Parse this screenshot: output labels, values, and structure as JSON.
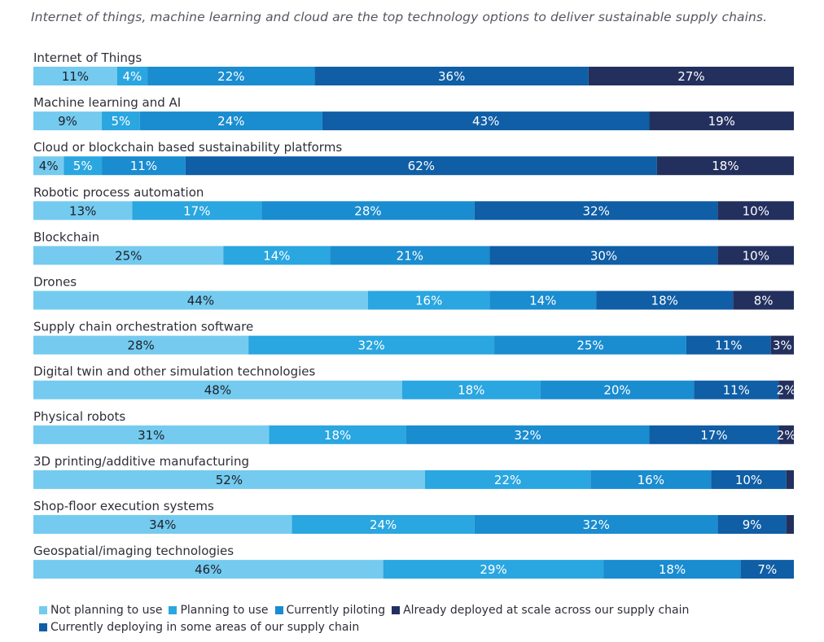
{
  "chart_data": {
    "type": "bar",
    "orientation": "horizontal",
    "stacked": true,
    "title": "Internet of things, machine learning and cloud are the top technology options to deliver sustainable supply chains.",
    "categories": [
      "Internet of Things",
      "Machine learning and AI",
      "Cloud or blockchain based sustainability platforms",
      "Robotic process automation",
      "Blockchain",
      "Drones",
      "Supply chain orchestration software",
      "Digital twin and other simulation technologies",
      "Physical robots",
      "3D printing/additive manufacturing",
      "Shop-floor execution systems",
      "Geospatial/imaging technologies"
    ],
    "series": [
      {
        "name": "Not planning to use",
        "color": "#74cbef",
        "values": [
          11,
          9,
          4,
          13,
          25,
          44,
          28,
          48,
          31,
          52,
          34,
          46
        ]
      },
      {
        "name": "Planning to use",
        "color": "#2aa6e0",
        "values": [
          4,
          5,
          5,
          17,
          14,
          16,
          32,
          18,
          18,
          22,
          24,
          29
        ]
      },
      {
        "name": "Currently piloting",
        "color": "#1a8cd0",
        "values": [
          22,
          24,
          11,
          28,
          21,
          14,
          25,
          20,
          32,
          16,
          32,
          18
        ]
      },
      {
        "name": "Currently deploying in some areas of our supply chain",
        "color": "#0f5ea6",
        "values": [
          36,
          43,
          62,
          32,
          30,
          18,
          11,
          11,
          17,
          10,
          9,
          7
        ]
      },
      {
        "name": "Already deployed at scale across our supply chain",
        "color": "#23305e",
        "values": [
          27,
          19,
          18,
          10,
          10,
          8,
          3,
          2,
          2,
          1,
          1,
          0
        ]
      }
    ],
    "data_labels": [
      [
        "11%",
        "4%",
        "22%",
        "36%",
        "27%"
      ],
      [
        "9%",
        "5%",
        "24%",
        "43%",
        "19%"
      ],
      [
        "4%",
        "5%",
        "11%",
        "62%",
        "18%"
      ],
      [
        "13%",
        "17%",
        "28%",
        "32%",
        "10%"
      ],
      [
        "25%",
        "14%",
        "21%",
        "30%",
        "10%"
      ],
      [
        "44%",
        "16%",
        "14%",
        "18%",
        "8%"
      ],
      [
        "28%",
        "32%",
        "25%",
        "11%",
        "3%"
      ],
      [
        "48%",
        "18%",
        "20%",
        "11%",
        "2%"
      ],
      [
        "31%",
        "18%",
        "32%",
        "17%",
        "2%"
      ],
      [
        "52%",
        "22%",
        "16%",
        "10%",
        ""
      ],
      [
        "34%",
        "24%",
        "32%",
        "9%",
        ""
      ],
      [
        "46%",
        "29%",
        "18%",
        "7%",
        ""
      ]
    ],
    "unit": "%",
    "legend_position": "bottom-left"
  },
  "legend": {
    "row1": [
      "Not planning to use",
      "Planning to use",
      "Currently piloting",
      "Already deployed at scale across our supply chain"
    ],
    "row2": [
      "Currently deploying in some areas of our supply chain"
    ]
  }
}
